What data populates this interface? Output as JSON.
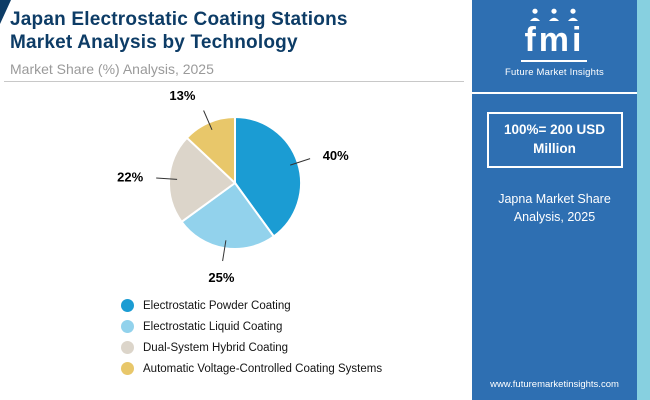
{
  "header": {
    "title_line1": "Japan Electrostatic Coating Stations",
    "title_line2": "Market Analysis by Technology",
    "subtitle": "Market Share (%) Analysis, 2025"
  },
  "chart_data": {
    "type": "pie",
    "title": "Japan Electrostatic Coating Stations Market Analysis by Technology",
    "subtitle": "Market Share (%) Analysis, 2025",
    "labels": [
      "Electrostatic Powder Coating",
      "Electrostatic Liquid Coating",
      "Dual-System Hybrid Coating",
      "Automatic Voltage-Controlled Coating Systems"
    ],
    "values": [
      40,
      25,
      22,
      13
    ],
    "unit": "%",
    "colors": [
      "#1b9cd3",
      "#92d2ec",
      "#dcd5ca",
      "#e8c76a"
    ],
    "start_angle_deg": 0,
    "direction": "clockwise",
    "legend_position": "bottom-left"
  },
  "sidebar": {
    "logo_text": "fmi",
    "logo_subtext": "Future Market Insights",
    "stat_line1": "100%= 200 USD",
    "stat_line2": "Million",
    "note_line1": "Japna Market Share",
    "note_line2": "Analysis, 2025",
    "website": "www.futuremarketinsights.com",
    "colors": {
      "background": "#2e6fb2",
      "edge_strip": "#87d0e0"
    }
  }
}
